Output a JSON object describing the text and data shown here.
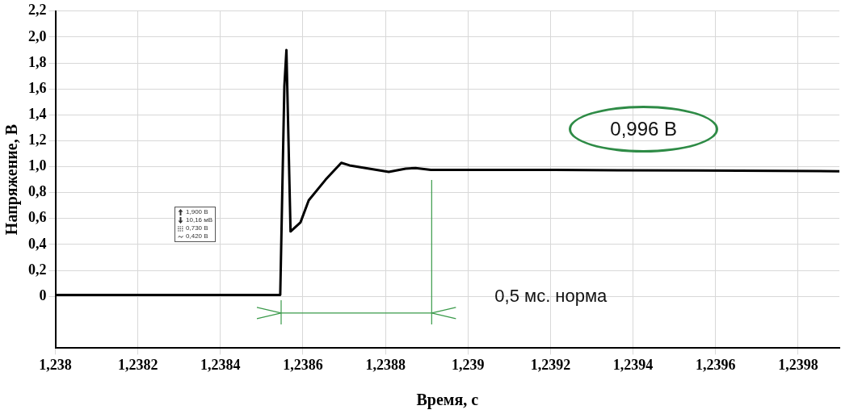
{
  "chart_data": {
    "type": "line",
    "xlabel": "Время, с",
    "ylabel": "Напряжение, В",
    "x": [
      1.238,
      1.238545,
      1.238555,
      1.23856,
      1.23857,
      1.238594,
      1.238614,
      1.238655,
      1.238693,
      1.238713,
      1.238808,
      1.238849,
      1.238873,
      1.23891,
      1.239209,
      1.239556,
      1.2399
    ],
    "series": [
      {
        "color": "#000000",
        "values": [
          0.01,
          0.01,
          1.62,
          1.9,
          0.5,
          0.57,
          0.74,
          0.9,
          1.03,
          1.01,
          0.96,
          0.985,
          0.99,
          0.976,
          0.975,
          0.97,
          0.965
        ]
      }
    ],
    "xlim": [
      1.238,
      1.2399
    ],
    "xticks": [
      {
        "value": 1.238,
        "label": "1,238"
      },
      {
        "value": 1.2382,
        "label": "1,2382"
      },
      {
        "value": 1.2384,
        "label": "1,2384"
      },
      {
        "value": 1.2386,
        "label": "1,2386"
      },
      {
        "value": 1.2388,
        "label": "1,2388"
      },
      {
        "value": 1.239,
        "label": "1,239"
      },
      {
        "value": 1.2392,
        "label": "1,2392"
      },
      {
        "value": 1.2394,
        "label": "1,2394"
      },
      {
        "value": 1.2396,
        "label": "1,2396"
      },
      {
        "value": 1.2398,
        "label": "1,2398"
      }
    ],
    "ylim": [
      -0.4,
      2.2
    ],
    "yticks": [
      0,
      {
        "value": 0.2,
        "label": "0,2"
      },
      {
        "value": 0.4,
        "label": "0,4"
      },
      {
        "value": 0.6,
        "label": "0,6"
      },
      {
        "value": 0.8,
        "label": "0,8"
      },
      {
        "value": 1,
        "label": "1,0"
      },
      {
        "value": 1.2,
        "label": "1,2"
      },
      {
        "value": 1.4,
        "label": "1,4"
      },
      {
        "value": 1.6,
        "label": "1,6"
      },
      {
        "value": 1.8,
        "label": "1,8"
      },
      {
        "value": 2,
        "label": "2,0"
      },
      {
        "value": 2.2,
        "label": "2,2"
      }
    ],
    "annotations": [
      "0,996 В",
      "0,5 мс. норма",
      "1,900 В",
      "10,16 мВ",
      "0,730 В",
      "0,420 В"
    ],
    "grid": true,
    "legend": false,
    "marker": "none",
    "line_style": "solid"
  }
}
